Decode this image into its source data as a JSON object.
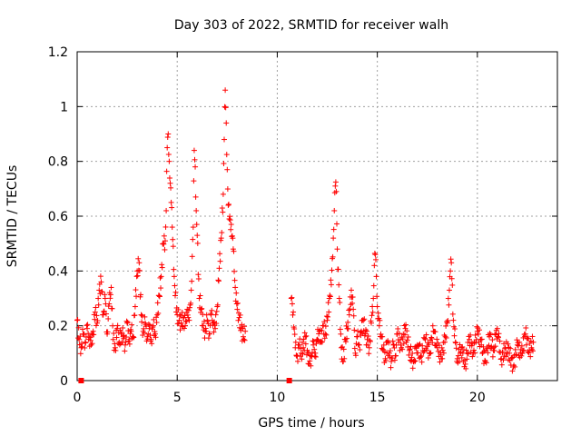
{
  "chart_data": {
    "type": "scatter",
    "title": "Day 303 of 2022, SRMTID for receiver walh",
    "xlabel": "GPS time / hours",
    "ylabel": "SRMTID / TECUs",
    "xlim": [
      0,
      24
    ],
    "ylim": [
      0,
      1.2
    ],
    "xticks": [
      0,
      5,
      10,
      15,
      20
    ],
    "xtick_labels": [
      "0",
      "5",
      "10",
      "15",
      "20"
    ],
    "yticks": [
      0,
      0.2,
      0.4,
      0.6,
      0.8,
      1.0,
      1.2
    ],
    "ytick_labels": [
      "0",
      "0.2",
      "0.4",
      "0.6",
      "0.8",
      "1",
      "1.2"
    ],
    "grid": true,
    "marker": "+",
    "color": "#ff0000",
    "series": [
      {
        "name": "SRMTID",
        "segments": [
          {
            "x": [
              0.0,
              0.1,
              0.2,
              0.3,
              0.4,
              0.5,
              0.6,
              0.7,
              0.8,
              0.9,
              1.0,
              1.1,
              1.2,
              1.3,
              1.4,
              1.5,
              1.6,
              1.7,
              1.8,
              1.9,
              2.0,
              2.1,
              2.2,
              2.3,
              2.4,
              2.5,
              2.6,
              2.7,
              2.8,
              2.9,
              3.0,
              3.1,
              3.2,
              3.3,
              3.4,
              3.5,
              3.6,
              3.7,
              3.8,
              3.9,
              4.0,
              4.1,
              4.2,
              4.3,
              4.4,
              4.45,
              4.5,
              4.55,
              4.6,
              4.65,
              4.7,
              4.75,
              4.8,
              4.85,
              4.9,
              5.0,
              5.1,
              5.2,
              5.3,
              5.4,
              5.5,
              5.6,
              5.7,
              5.8,
              5.85,
              5.9,
              5.95,
              6.0,
              6.1,
              6.2,
              6.3,
              6.4,
              6.5,
              6.6,
              6.7,
              6.8,
              6.9,
              7.0,
              7.1,
              7.2,
              7.3,
              7.35,
              7.4,
              7.45,
              7.5,
              7.55,
              7.6,
              7.7,
              7.8,
              7.9,
              8.0,
              8.1,
              8.2,
              8.3,
              8.4
            ],
            "y": [
              0.22,
              0.15,
              0.12,
              0.17,
              0.14,
              0.19,
              0.16,
              0.13,
              0.18,
              0.25,
              0.21,
              0.33,
              0.36,
              0.24,
              0.3,
              0.17,
              0.28,
              0.34,
              0.15,
              0.12,
              0.19,
              0.14,
              0.17,
              0.16,
              0.13,
              0.21,
              0.15,
              0.18,
              0.16,
              0.27,
              0.4,
              0.43,
              0.24,
              0.18,
              0.21,
              0.16,
              0.19,
              0.15,
              0.2,
              0.17,
              0.24,
              0.31,
              0.38,
              0.5,
              0.51,
              0.62,
              0.85,
              0.9,
              0.8,
              0.72,
              0.65,
              0.56,
              0.49,
              0.38,
              0.31,
              0.24,
              0.22,
              0.21,
              0.23,
              0.2,
              0.26,
              0.22,
              0.33,
              0.56,
              0.84,
              0.78,
              0.62,
              0.53,
              0.3,
              0.26,
              0.2,
              0.18,
              0.22,
              0.17,
              0.24,
              0.21,
              0.19,
              0.27,
              0.41,
              0.52,
              0.68,
              0.88,
              1.06,
              0.94,
              0.77,
              0.64,
              0.59,
              0.57,
              0.48,
              0.34,
              0.26,
              0.23,
              0.19,
              0.16,
              0.18
            ]
          },
          {
            "x": [
              10.7,
              10.8,
              10.9,
              11.0,
              11.1,
              11.2,
              11.3,
              11.4,
              11.5,
              11.6,
              11.7,
              11.8,
              11.9,
              12.0,
              12.1,
              12.2,
              12.3,
              12.4,
              12.5,
              12.6,
              12.7,
              12.8,
              12.85,
              12.9,
              12.95,
              13.0,
              13.1,
              13.2,
              13.3,
              13.4,
              13.5,
              13.6,
              13.7,
              13.8,
              13.9,
              14.0,
              14.1,
              14.2,
              14.3,
              14.4,
              14.5,
              14.6,
              14.7,
              14.8,
              14.85,
              14.9,
              14.95,
              15.0,
              15.1,
              15.2,
              15.3,
              15.4,
              15.5,
              15.6,
              15.7,
              15.8,
              15.9,
              16.0,
              16.2,
              16.4,
              16.6,
              16.8,
              17.0,
              17.2,
              17.4,
              17.6,
              17.8,
              18.0,
              18.2,
              18.4,
              18.5,
              18.6,
              18.65,
              18.7,
              18.8,
              18.9,
              19.0,
              19.2,
              19.4,
              19.6,
              19.8,
              20.0,
              20.2,
              20.4,
              20.6,
              20.8,
              21.0,
              21.2,
              21.4,
              21.6,
              21.8,
              22.0,
              22.2,
              22.4,
              22.6,
              22.8
            ],
            "y": [
              0.3,
              0.25,
              0.12,
              0.09,
              0.13,
              0.1,
              0.12,
              0.16,
              0.11,
              0.06,
              0.09,
              0.13,
              0.1,
              0.15,
              0.18,
              0.14,
              0.2,
              0.17,
              0.22,
              0.3,
              0.35,
              0.52,
              0.62,
              0.71,
              0.69,
              0.48,
              0.3,
              0.12,
              0.07,
              0.15,
              0.19,
              0.24,
              0.33,
              0.26,
              0.1,
              0.16,
              0.13,
              0.18,
              0.22,
              0.17,
              0.15,
              0.12,
              0.21,
              0.3,
              0.42,
              0.46,
              0.38,
              0.27,
              0.2,
              0.16,
              0.11,
              0.08,
              0.14,
              0.1,
              0.07,
              0.13,
              0.09,
              0.17,
              0.12,
              0.19,
              0.11,
              0.07,
              0.13,
              0.09,
              0.15,
              0.1,
              0.18,
              0.12,
              0.08,
              0.16,
              0.21,
              0.33,
              0.4,
              0.43,
              0.22,
              0.14,
              0.08,
              0.12,
              0.06,
              0.15,
              0.1,
              0.18,
              0.13,
              0.07,
              0.16,
              0.11,
              0.19,
              0.08,
              0.12,
              0.1,
              0.05,
              0.13,
              0.09,
              0.17,
              0.11,
              0.14
            ]
          }
        ],
        "zero_markers_x": [
          0.2,
          10.6
        ]
      }
    ]
  }
}
